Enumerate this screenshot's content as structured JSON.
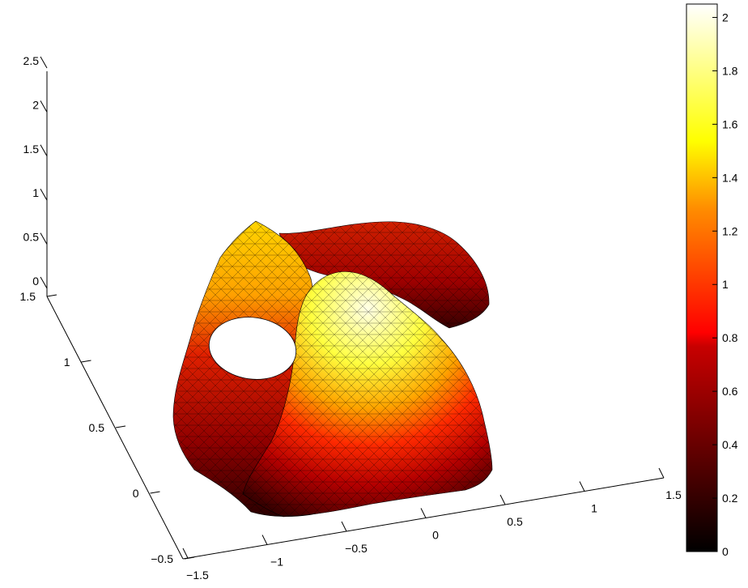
{
  "chart_data": {
    "type": "surface",
    "title": "",
    "xlabel": "",
    "ylabel": "",
    "zlabel": "",
    "colormap": "hot",
    "grid": false,
    "x_ticks": [
      "−1.5",
      "−1",
      "−0.5",
      "0",
      "0.5",
      "1",
      "1.5"
    ],
    "y_ticks": [
      "−0.5",
      "0",
      "0.5",
      "1",
      "1.5"
    ],
    "z_ticks": [
      "0",
      "0.5",
      "1",
      "1.5",
      "2",
      "2.5"
    ],
    "xlim": [
      -1.5,
      1.5
    ],
    "ylim": [
      -0.5,
      1.5
    ],
    "zlim": [
      0,
      2.5
    ],
    "colorbar": {
      "ticks": [
        "0",
        "0.2",
        "0.4",
        "0.6",
        "0.8",
        "1",
        "1.2",
        "1.4",
        "1.6",
        "1.8",
        "2"
      ],
      "range": [
        0,
        2.05
      ],
      "colors": [
        "#000000",
        "#550000",
        "#aa0000",
        "#ff0000",
        "#ff5500",
        "#ffaa00",
        "#ffff00",
        "#ffff80",
        "#ffffff"
      ]
    },
    "shapes": [
      {
        "name": "tube-left",
        "description": "tubular surface with circular hole, max z about 1.3"
      },
      {
        "name": "tube-back",
        "description": "curved back lobe, z about 0.6-0.9"
      },
      {
        "name": "dome-front",
        "description": "front dome reaching about 2.05"
      }
    ]
  }
}
